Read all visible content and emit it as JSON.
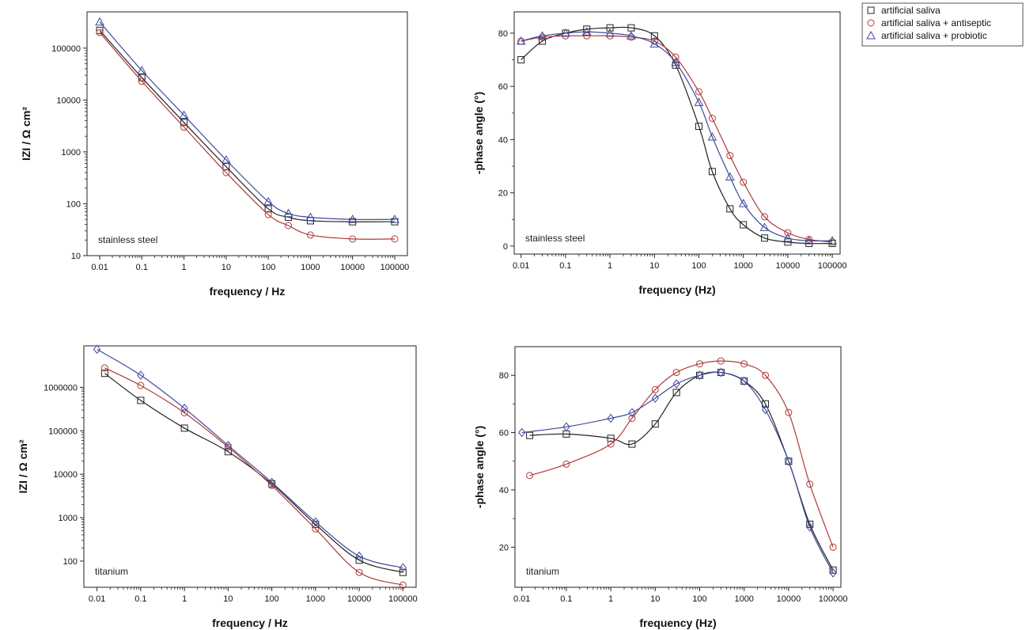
{
  "legend": {
    "items": [
      {
        "label": "artificial saliva",
        "color": "#222222",
        "marker": "square"
      },
      {
        "label": "artificial saliva + antiseptic",
        "color": "#b03a3a",
        "marker": "circle"
      },
      {
        "label": "artificial saliva + probiotic",
        "color": "#3f4a9a",
        "marker": "triangle"
      }
    ]
  },
  "chart_data": [
    {
      "type": "scatter",
      "xscale": "log",
      "yscale": "log",
      "xlabel": "frequency / Hz",
      "ylabel": "IZI / Ω cm²",
      "annotation": "stainless steel",
      "xlim": [
        0.005,
        200000
      ],
      "ylim": [
        10,
        500000
      ],
      "xticks": [
        0.01,
        0.1,
        1,
        10,
        100,
        1000,
        10000,
        100000
      ],
      "xticklabels": [
        "0.01",
        "0.1",
        "1",
        "10",
        "100",
        "1000",
        "10000",
        "100000"
      ],
      "yticks": [
        10,
        100,
        1000,
        10000,
        100000
      ],
      "yticklabels": [
        "10",
        "100",
        "1000",
        "10000",
        "100000"
      ],
      "series": [
        {
          "name": "artificial saliva",
          "marker": "square",
          "color": "#222222",
          "x": [
            0.01,
            0.1,
            1,
            10,
            100,
            300,
            1000,
            10000,
            100000
          ],
          "y": [
            220000,
            27000,
            3700,
            520,
            80,
            55,
            47,
            45,
            45
          ]
        },
        {
          "name": "artificial saliva + antiseptic",
          "marker": "circle",
          "color": "#b03a3a",
          "x": [
            0.01,
            0.1,
            1,
            10,
            100,
            300,
            1000,
            10000,
            100000
          ],
          "y": [
            200000,
            23000,
            3000,
            400,
            62,
            38,
            25,
            21,
            21
          ]
        },
        {
          "name": "artificial saliva + probiotic",
          "marker": "triangle",
          "color": "#3f4a9a",
          "x": [
            0.01,
            0.1,
            1,
            10,
            100,
            300,
            1000,
            10000,
            100000
          ],
          "y": [
            320000,
            37000,
            5100,
            700,
            110,
            65,
            55,
            50,
            50
          ]
        }
      ]
    },
    {
      "type": "scatter",
      "xscale": "log",
      "yscale": "linear",
      "xlabel": "frequency (Hz)",
      "ylabel": "-phase angle (°)",
      "annotation": "stainless steel",
      "xlim": [
        0.007,
        150000
      ],
      "ylim": [
        -3,
        88
      ],
      "xticks": [
        0.01,
        0.1,
        1,
        10,
        100,
        1000,
        10000,
        100000
      ],
      "xticklabels": [
        "0.01",
        "0.1",
        "1",
        "10",
        "100",
        "1000",
        "10000",
        "100000"
      ],
      "yticks": [
        0,
        20,
        40,
        60,
        80
      ],
      "yticklabels": [
        "0",
        "20",
        "40",
        "60",
        "80"
      ],
      "series": [
        {
          "name": "artificial saliva",
          "marker": "square",
          "color": "#222222",
          "x": [
            0.01,
            0.03,
            0.1,
            0.3,
            1,
            3,
            10,
            30,
            100,
            200,
            500,
            1000,
            3000,
            10000,
            30000,
            100000
          ],
          "y": [
            70,
            77,
            80,
            81.5,
            82,
            82,
            79,
            68,
            45,
            28,
            14,
            8,
            3,
            1.5,
            1,
            1
          ]
        },
        {
          "name": "artificial saliva + antiseptic",
          "marker": "circle",
          "color": "#b03a3a",
          "x": [
            0.01,
            0.03,
            0.1,
            0.3,
            1,
            3,
            10,
            30,
            100,
            200,
            500,
            1000,
            3000,
            10000,
            30000,
            100000
          ],
          "y": [
            77,
            78.5,
            79,
            79,
            79,
            78.5,
            77,
            71,
            58,
            48,
            34,
            24,
            11,
            5,
            2.5,
            1.5
          ]
        },
        {
          "name": "artificial saliva + probiotic",
          "marker": "triangle",
          "color": "#3f4a9a",
          "x": [
            0.01,
            0.03,
            0.1,
            0.3,
            1,
            3,
            10,
            30,
            100,
            200,
            500,
            1000,
            3000,
            10000,
            30000,
            100000
          ],
          "y": [
            77,
            79,
            80,
            80.5,
            80,
            79,
            76,
            69,
            54,
            41,
            26,
            16,
            7,
            3,
            2,
            2
          ]
        }
      ]
    },
    {
      "type": "scatter",
      "xscale": "log",
      "yscale": "log",
      "xlabel": "frequency / Hz",
      "ylabel": "IZI / Ω cm²",
      "annotation": "titanium",
      "xlim": [
        0.005,
        200000
      ],
      "ylim": [
        25,
        9000000
      ],
      "xticks": [
        0.01,
        0.1,
        1,
        10,
        100,
        1000,
        10000,
        100000
      ],
      "xticklabels": [
        "0.01",
        "0.1",
        "1",
        "10",
        "100",
        "1000",
        "10000",
        "100000"
      ],
      "yticks": [
        100,
        1000,
        10000,
        100000,
        1000000
      ],
      "yticklabels": [
        "100",
        "1000",
        "10000",
        "100000",
        "1000000"
      ],
      "series": [
        {
          "name": "artificial saliva",
          "marker": "square",
          "color": "#222222",
          "x": [
            0.015,
            0.1,
            1,
            10,
            100,
            1000,
            10000,
            100000
          ],
          "y": [
            2100000,
            500000,
            115000,
            33000,
            6000,
            700,
            105,
            55
          ]
        },
        {
          "name": "artificial saliva + antiseptic",
          "marker": "circle",
          "color": "#b03a3a",
          "x": [
            0.015,
            0.1,
            1,
            10,
            100,
            1000,
            10000,
            100000
          ],
          "y": [
            2800000,
            1100000,
            260000,
            42000,
            5500,
            550,
            55,
            28
          ]
        },
        {
          "name": "artificial saliva + probiotic",
          "marker": "diamond",
          "color": "#3f4a9a",
          "x": [
            0.01,
            0.1,
            1,
            10,
            100,
            1000,
            10000,
            100000
          ],
          "y": [
            7500000,
            1900000,
            330000,
            46000,
            6500,
            800,
            130,
            70
          ]
        }
      ]
    },
    {
      "type": "scatter",
      "xscale": "log",
      "yscale": "linear",
      "xlabel": "frequency (Hz)",
      "ylabel": "-phase angle (°)",
      "annotation": "titanium",
      "xlim": [
        0.007,
        150000
      ],
      "ylim": [
        6,
        90
      ],
      "xticks": [
        0.01,
        0.1,
        1,
        10,
        100,
        1000,
        10000,
        100000
      ],
      "xticklabels": [
        "0.01",
        "0.1",
        "1",
        "10",
        "100",
        "1000",
        "10000",
        "100000"
      ],
      "yticks": [
        20,
        40,
        60,
        80
      ],
      "yticklabels": [
        "20",
        "40",
        "60",
        "80"
      ],
      "series": [
        {
          "name": "artificial saliva",
          "marker": "square",
          "color": "#222222",
          "x": [
            0.015,
            0.1,
            1,
            3,
            10,
            30,
            100,
            300,
            1000,
            3000,
            10000,
            30000,
            100000
          ],
          "y": [
            59,
            59.5,
            58,
            56,
            63,
            74,
            80,
            81,
            78,
            70,
            50,
            28,
            12
          ]
        },
        {
          "name": "artificial saliva + antiseptic",
          "marker": "circle",
          "color": "#b03a3a",
          "x": [
            0.015,
            0.1,
            1,
            3,
            10,
            30,
            100,
            300,
            1000,
            3000,
            10000,
            30000,
            100000
          ],
          "y": [
            45,
            49,
            56,
            65,
            75,
            81,
            84,
            85,
            84,
            80,
            67,
            42,
            20
          ]
        },
        {
          "name": "artificial saliva + probiotic",
          "marker": "diamond",
          "color": "#3f4a9a",
          "x": [
            0.01,
            0.1,
            1,
            3,
            10,
            30,
            100,
            300,
            1000,
            3000,
            10000,
            30000,
            100000
          ],
          "y": [
            60,
            62,
            65,
            67,
            72,
            77,
            80,
            81,
            78,
            68,
            50,
            27,
            11
          ]
        }
      ]
    }
  ]
}
